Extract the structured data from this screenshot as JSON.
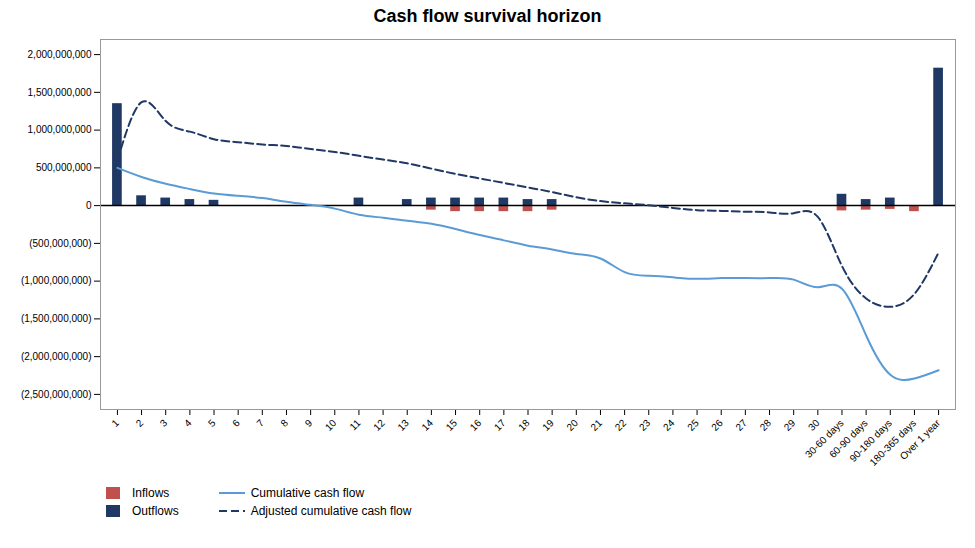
{
  "chart_data": {
    "type": "bar",
    "title": "Cash flow survival horizon",
    "categories": [
      "1",
      "2",
      "3",
      "4",
      "5",
      "6",
      "7",
      "8",
      "9",
      "10",
      "11",
      "12",
      "13",
      "14",
      "15",
      "16",
      "17",
      "18",
      "19",
      "20",
      "21",
      "22",
      "23",
      "24",
      "25",
      "26",
      "27",
      "28",
      "29",
      "30",
      "30-60 days",
      "60-90 days",
      "90-180 days",
      "180-365 days",
      "Over 1 year"
    ],
    "series": [
      {
        "name": "Outflows",
        "type": "bar",
        "color": "#1f3864",
        "values": [
          1350000000,
          130000000,
          100000000,
          80000000,
          70000000,
          0,
          0,
          0,
          0,
          0,
          100000000,
          0,
          80000000,
          100000000,
          100000000,
          100000000,
          100000000,
          80000000,
          80000000,
          0,
          0,
          0,
          0,
          0,
          0,
          0,
          0,
          0,
          0,
          0,
          150000000,
          80000000,
          100000000,
          0,
          1820000000
        ]
      },
      {
        "name": "Inflows",
        "type": "bar",
        "color": "#c0504d",
        "values": [
          0,
          0,
          0,
          0,
          0,
          0,
          0,
          0,
          0,
          0,
          0,
          0,
          0,
          -60000000,
          -80000000,
          -80000000,
          -80000000,
          -80000000,
          -60000000,
          0,
          0,
          0,
          0,
          0,
          0,
          0,
          0,
          0,
          0,
          0,
          -70000000,
          -60000000,
          -50000000,
          -80000000,
          0
        ]
      },
      {
        "name": "Cumulative cash flow",
        "type": "line",
        "color": "#5b9bd5",
        "line_style": "solid",
        "values": [
          500000000,
          380000000,
          290000000,
          220000000,
          160000000,
          130000000,
          100000000,
          50000000,
          10000000,
          -40000000,
          -120000000,
          -160000000,
          -200000000,
          -240000000,
          -310000000,
          -390000000,
          -460000000,
          -530000000,
          -580000000,
          -640000000,
          -700000000,
          -880000000,
          -930000000,
          -950000000,
          -970000000,
          -960000000,
          -960000000,
          -960000000,
          -980000000,
          -1080000000,
          -1100000000,
          -1720000000,
          -2240000000,
          -2290000000,
          -2180000000
        ]
      },
      {
        "name": "Adjusted cumulative cash flow",
        "type": "line",
        "color": "#1f3864",
        "line_style": "dashed",
        "values": [
          600000000,
          1370000000,
          1120000000,
          980000000,
          880000000,
          840000000,
          810000000,
          790000000,
          750000000,
          710000000,
          660000000,
          610000000,
          560000000,
          490000000,
          420000000,
          360000000,
          300000000,
          240000000,
          180000000,
          110000000,
          60000000,
          30000000,
          5000000,
          -30000000,
          -60000000,
          -70000000,
          -80000000,
          -90000000,
          -100000000,
          -150000000,
          -800000000,
          -1230000000,
          -1340000000,
          -1170000000,
          -620000000
        ]
      }
    ],
    "ylim": [
      -2700000000,
      2200000000
    ],
    "yticks": [
      {
        "value": 2000000000,
        "label": "2,000,000,000"
      },
      {
        "value": 1500000000,
        "label": "1,500,000,000"
      },
      {
        "value": 1000000000,
        "label": "1,000,000,000"
      },
      {
        "value": 500000000,
        "label": "500,000,000"
      },
      0,
      {
        "value": -500000000,
        "label": "(500,000,000)"
      },
      {
        "value": -1000000000,
        "label": "(1,000,000,000)"
      },
      {
        "value": -1500000000,
        "label": "(1,500,000,000)"
      },
      {
        "value": -2000000000,
        "label": "(2,000,000,000)"
      },
      {
        "value": -2500000000,
        "label": "(2,500,000,000)"
      }
    ],
    "grid": false,
    "legend": "bottom"
  }
}
